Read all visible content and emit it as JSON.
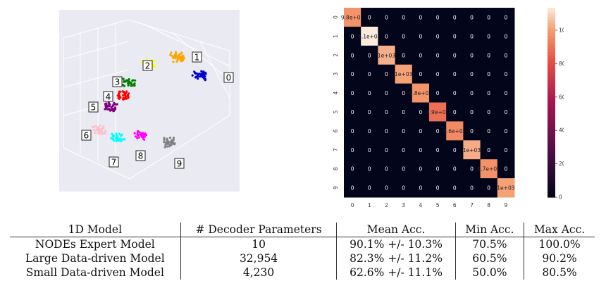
{
  "chart_data": [
    {
      "type": "scatter",
      "projection": "3d",
      "background": "#eaeaf2",
      "grid": true,
      "clusters": [
        {
          "label": "0",
          "color": "#0000cc",
          "n": 40
        },
        {
          "label": "1",
          "color": "#ffa500",
          "n": 40
        },
        {
          "label": "2",
          "color": "#ffff00",
          "n": 30
        },
        {
          "label": "3",
          "color": "#008000",
          "n": 30
        },
        {
          "label": "4",
          "color": "#ff0000",
          "n": 35
        },
        {
          "label": "5",
          "color": "#800080",
          "n": 35
        },
        {
          "label": "6",
          "color": "#ffc0cb",
          "n": 30
        },
        {
          "label": "7",
          "color": "#00ffff",
          "n": 30
        },
        {
          "label": "8",
          "color": "#ff00ff",
          "n": 30
        },
        {
          "label": "9",
          "color": "#808080",
          "n": 40
        }
      ]
    },
    {
      "type": "heatmap",
      "labels": [
        "0",
        "1",
        "2",
        "3",
        "4",
        "5",
        "6",
        "7",
        "8",
        "9"
      ],
      "annotations": [
        [
          "9.8e+02",
          "0",
          "0",
          "0",
          "0",
          "0",
          "0",
          "0",
          "0",
          "0"
        ],
        [
          "0",
          "1.1e+03",
          "0",
          "0",
          "0",
          "0",
          "0",
          "0",
          "0",
          "0"
        ],
        [
          "0",
          "0",
          "1e+03",
          "0",
          "0",
          "0",
          "0",
          "0",
          "0",
          "0"
        ],
        [
          "0",
          "0",
          "0",
          "1e+03",
          "0",
          "0",
          "0",
          "0",
          "0",
          "0"
        ],
        [
          "0",
          "0",
          "0",
          "0",
          "9.8e+02",
          "0",
          "0",
          "0",
          "0",
          "0"
        ],
        [
          "0",
          "0",
          "0",
          "0",
          "0",
          "8.9e+02",
          "0",
          "0",
          "0",
          "0"
        ],
        [
          "0",
          "0",
          "0",
          "0",
          "0",
          "0",
          "9.6e+02",
          "0",
          "0",
          "0"
        ],
        [
          "0",
          "0",
          "0",
          "0",
          "0",
          "0",
          "0",
          "1e+03",
          "0",
          "0"
        ],
        [
          "0",
          "0",
          "0",
          "0",
          "0",
          "0",
          "0",
          "0",
          "9.7e+02",
          "0"
        ],
        [
          "0",
          "0",
          "0",
          "0",
          "0",
          "0",
          "0",
          "0",
          "0",
          "1e+03"
        ]
      ],
      "diagonal_values": [
        980,
        1135,
        1032,
        1010,
        982,
        892,
        958,
        1028,
        974,
        1009
      ],
      "colorbar_ticks": [
        "0",
        "200",
        "400",
        "600",
        "800",
        "1000"
      ],
      "vmin": 0,
      "vmax": 1135
    }
  ],
  "table": {
    "headers": [
      "1D Model",
      "# Decoder Parameters",
      "Mean Acc.",
      "Min Acc.",
      "Max Acc."
    ],
    "rows": [
      [
        "NODEs Expert Model",
        "10",
        "90.1% +/- 10.3%",
        "70.5%",
        "100.0%"
      ],
      [
        "Large Data-driven Model",
        "32,954",
        "82.3% +/- 11.2%",
        "60.5%",
        "90.2%"
      ],
      [
        "Small Data-driven Model",
        "4,230",
        "62.6% +/- 11.1%",
        "50.0%",
        "80.5%"
      ]
    ]
  }
}
